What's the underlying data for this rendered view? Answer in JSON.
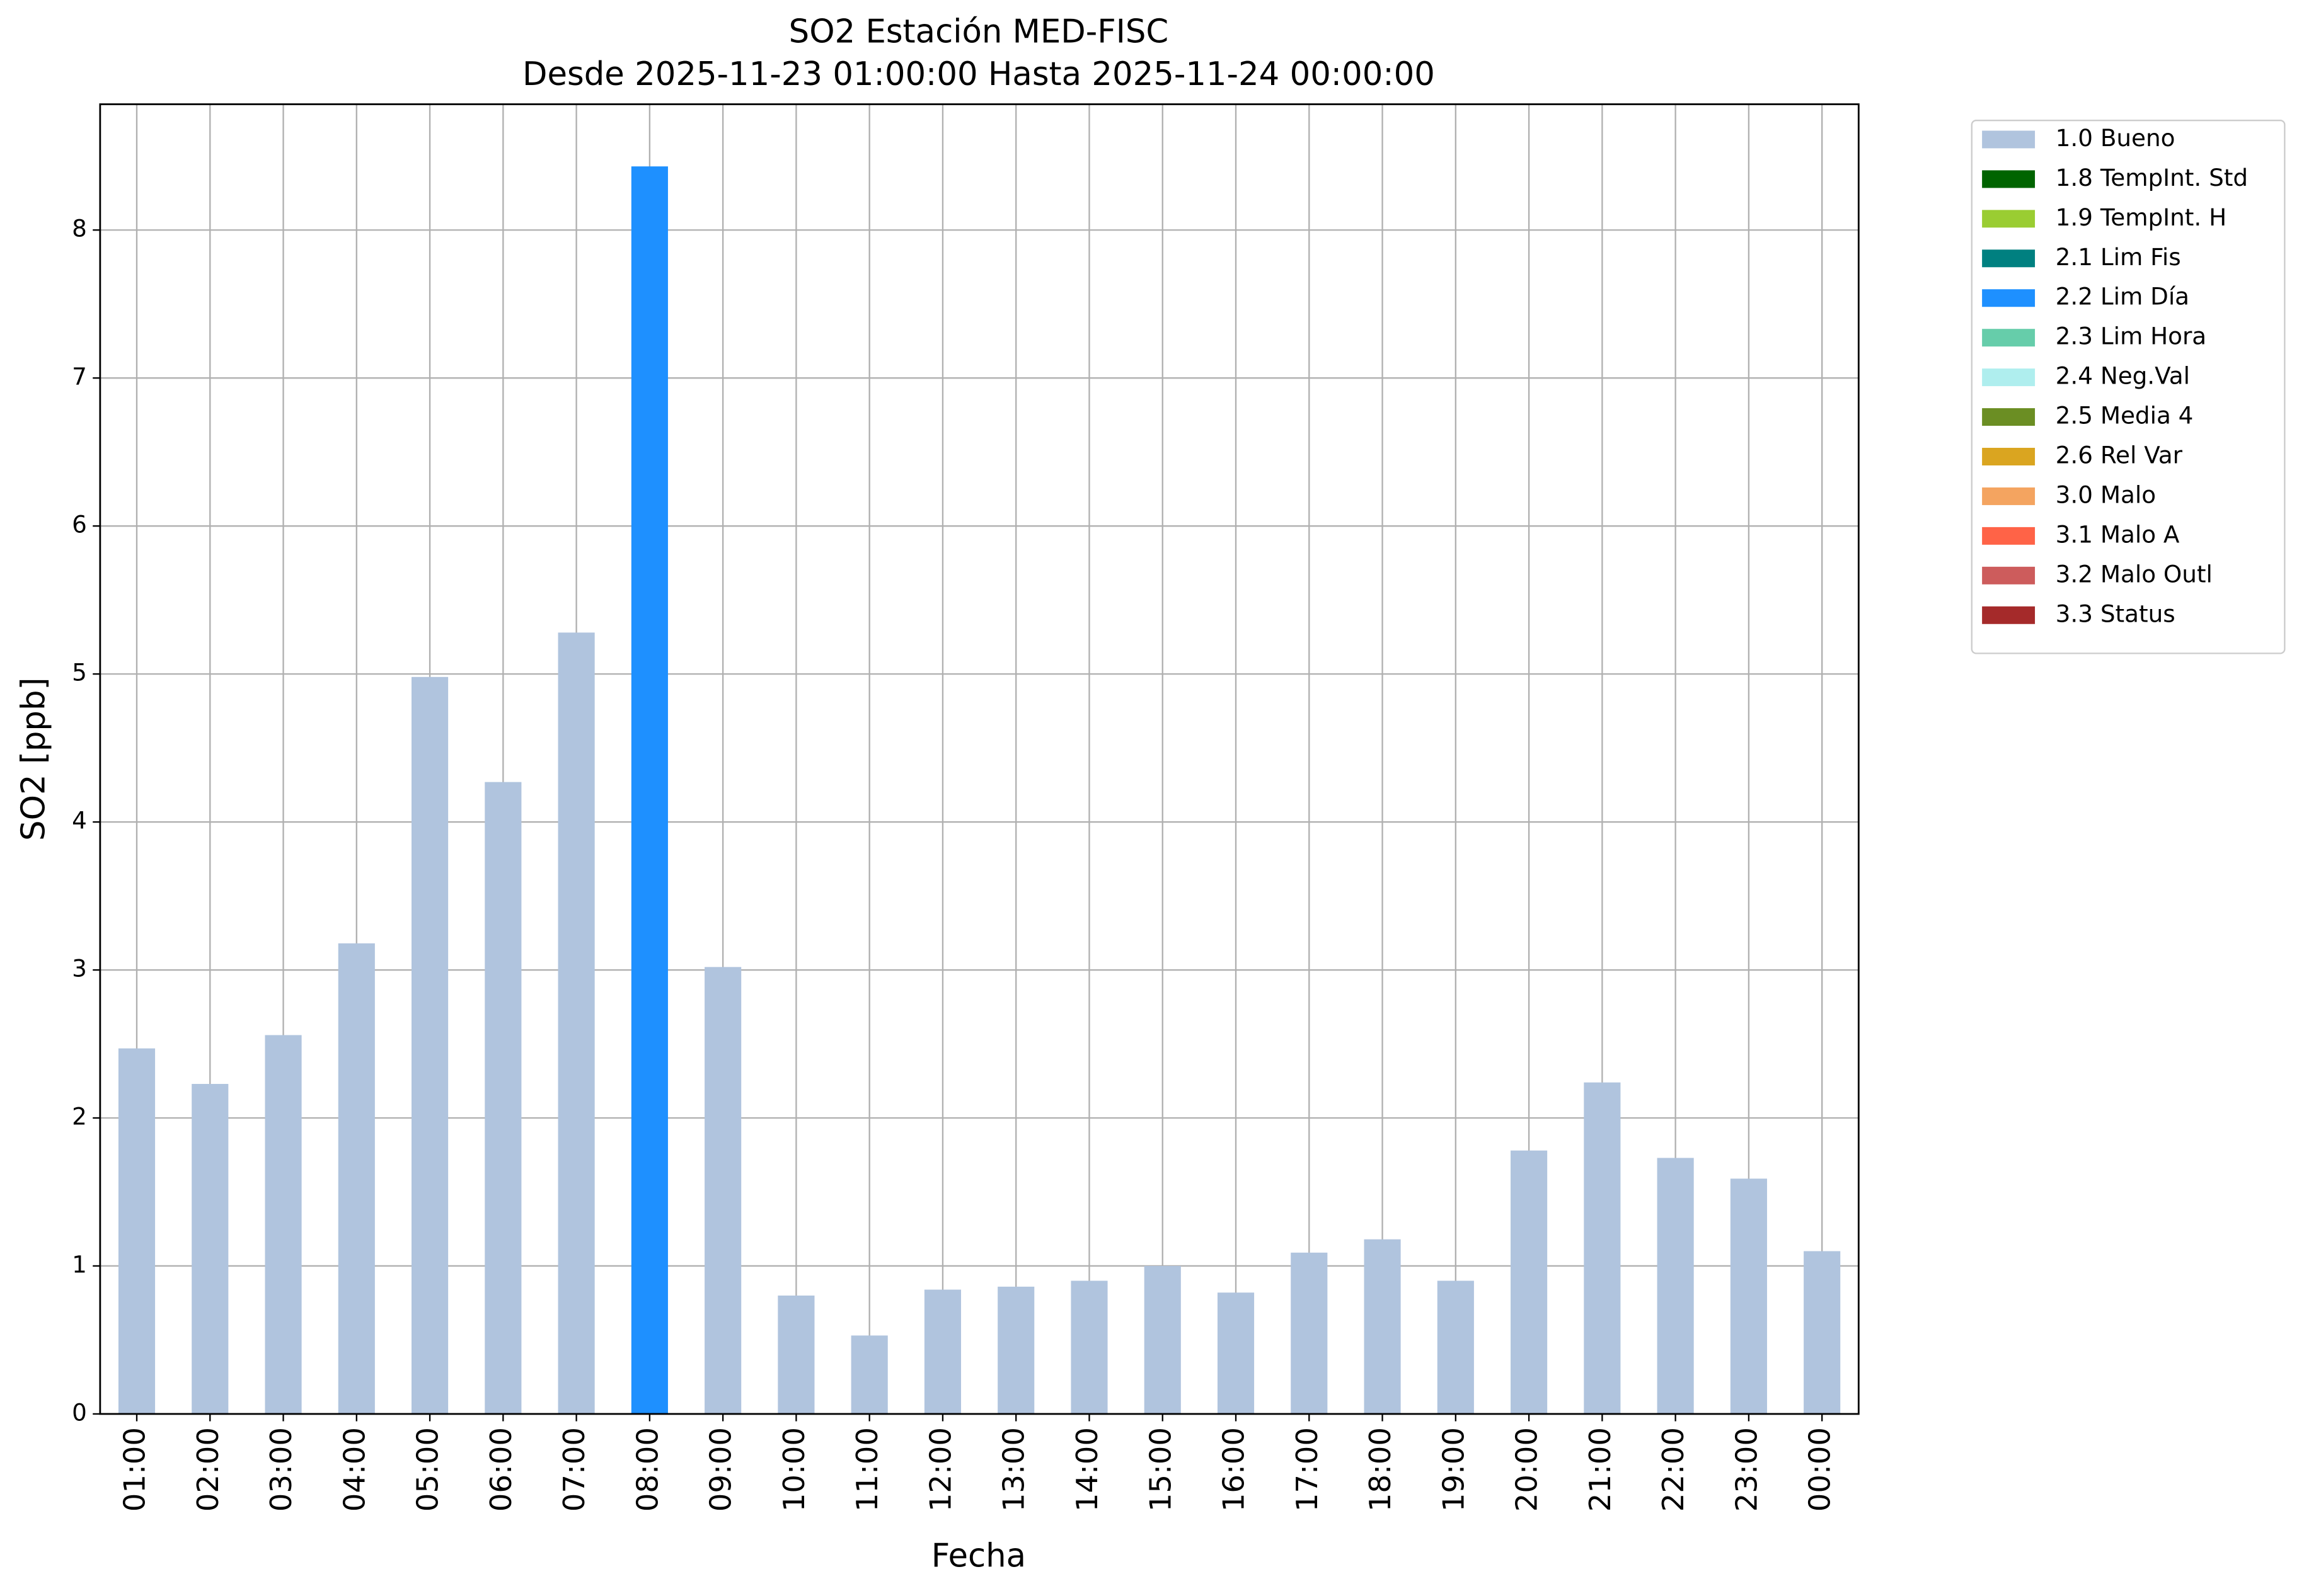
{
  "chart_data": {
    "type": "bar",
    "stacked": true,
    "title": "SO2 Estación MED-FISC",
    "subtitle": "Desde 2025-11-23 01:00:00 Hasta 2025-11-24 00:00:00",
    "xlabel": "Fecha",
    "ylabel": "SO2 [ppb]",
    "categories": [
      "01:00",
      "02:00",
      "03:00",
      "04:00",
      "05:00",
      "06:00",
      "07:00",
      "08:00",
      "09:00",
      "10:00",
      "11:00",
      "12:00",
      "13:00",
      "14:00",
      "15:00",
      "16:00",
      "17:00",
      "18:00",
      "19:00",
      "20:00",
      "21:00",
      "22:00",
      "23:00",
      "00:00"
    ],
    "series": [
      {
        "name": "1.0 Bueno",
        "color": "#b0c4de",
        "values": [
          2.47,
          2.23,
          2.56,
          3.18,
          4.98,
          4.27,
          5.28,
          null,
          3.02,
          0.8,
          0.53,
          0.84,
          0.86,
          0.9,
          1.0,
          0.82,
          1.09,
          1.18,
          0.9,
          1.78,
          2.24,
          1.73,
          1.59,
          1.1
        ]
      },
      {
        "name": "1.8 TempInt. Std",
        "color": "#006400",
        "values": [
          null,
          null,
          null,
          null,
          null,
          null,
          null,
          null,
          null,
          null,
          null,
          null,
          null,
          null,
          null,
          null,
          null,
          null,
          null,
          null,
          null,
          null,
          null,
          null
        ]
      },
      {
        "name": "1.9 TempInt. H",
        "color": "#9acd32",
        "values": [
          null,
          null,
          null,
          null,
          null,
          null,
          null,
          null,
          null,
          null,
          null,
          null,
          null,
          null,
          null,
          null,
          null,
          null,
          null,
          null,
          null,
          null,
          null,
          null
        ]
      },
      {
        "name": "2.1 Lim Fis",
        "color": "#008080",
        "values": [
          null,
          null,
          null,
          null,
          null,
          null,
          null,
          null,
          null,
          null,
          null,
          null,
          null,
          null,
          null,
          null,
          null,
          null,
          null,
          null,
          null,
          null,
          null,
          null
        ]
      },
      {
        "name": "2.2 Lim Día",
        "color": "#1e90ff",
        "values": [
          null,
          null,
          null,
          null,
          null,
          null,
          null,
          8.43,
          null,
          null,
          null,
          null,
          null,
          null,
          null,
          null,
          null,
          null,
          null,
          null,
          null,
          null,
          null,
          null
        ]
      },
      {
        "name": "2.3 Lim Hora",
        "color": "#66cdaa",
        "values": [
          null,
          null,
          null,
          null,
          null,
          null,
          null,
          null,
          null,
          null,
          null,
          null,
          null,
          null,
          null,
          null,
          null,
          null,
          null,
          null,
          null,
          null,
          null,
          null
        ]
      },
      {
        "name": "2.4 Neg.Val",
        "color": "#afeeee",
        "values": [
          null,
          null,
          null,
          null,
          null,
          null,
          null,
          null,
          null,
          null,
          null,
          null,
          null,
          null,
          null,
          null,
          null,
          null,
          null,
          null,
          null,
          null,
          null,
          null
        ]
      },
      {
        "name": "2.5 Media 4",
        "color": "#6b8e23",
        "values": [
          null,
          null,
          null,
          null,
          null,
          null,
          null,
          null,
          null,
          null,
          null,
          null,
          null,
          null,
          null,
          null,
          null,
          null,
          null,
          null,
          null,
          null,
          null,
          null
        ]
      },
      {
        "name": "2.6 Rel Var",
        "color": "#daa520",
        "values": [
          null,
          null,
          null,
          null,
          null,
          null,
          null,
          null,
          null,
          null,
          null,
          null,
          null,
          null,
          null,
          null,
          null,
          null,
          null,
          null,
          null,
          null,
          null,
          null
        ]
      },
      {
        "name": "3.0 Malo",
        "color": "#f4a460",
        "values": [
          null,
          null,
          null,
          null,
          null,
          null,
          null,
          null,
          null,
          null,
          null,
          null,
          null,
          null,
          null,
          null,
          null,
          null,
          null,
          null,
          null,
          null,
          null,
          null
        ]
      },
      {
        "name": "3.1 Malo A",
        "color": "#ff6347",
        "values": [
          null,
          null,
          null,
          null,
          null,
          null,
          null,
          null,
          null,
          null,
          null,
          null,
          null,
          null,
          null,
          null,
          null,
          null,
          null,
          null,
          null,
          null,
          null,
          null
        ]
      },
      {
        "name": "3.2 Malo Outl",
        "color": "#cd5c5c",
        "values": [
          null,
          null,
          null,
          null,
          null,
          null,
          null,
          null,
          null,
          null,
          null,
          null,
          null,
          null,
          null,
          null,
          null,
          null,
          null,
          null,
          null,
          null,
          null,
          null
        ]
      },
      {
        "name": "3.3 Status",
        "color": "#a52a2a",
        "values": [
          null,
          null,
          null,
          null,
          null,
          null,
          null,
          null,
          null,
          null,
          null,
          null,
          null,
          null,
          null,
          null,
          null,
          null,
          null,
          null,
          null,
          null,
          null,
          null
        ]
      }
    ],
    "ylim": [
      0,
      8.85
    ],
    "yticks": [
      0,
      1,
      2,
      3,
      4,
      5,
      6,
      7,
      8
    ],
    "grid": true,
    "legend": "outside-upper-right"
  }
}
